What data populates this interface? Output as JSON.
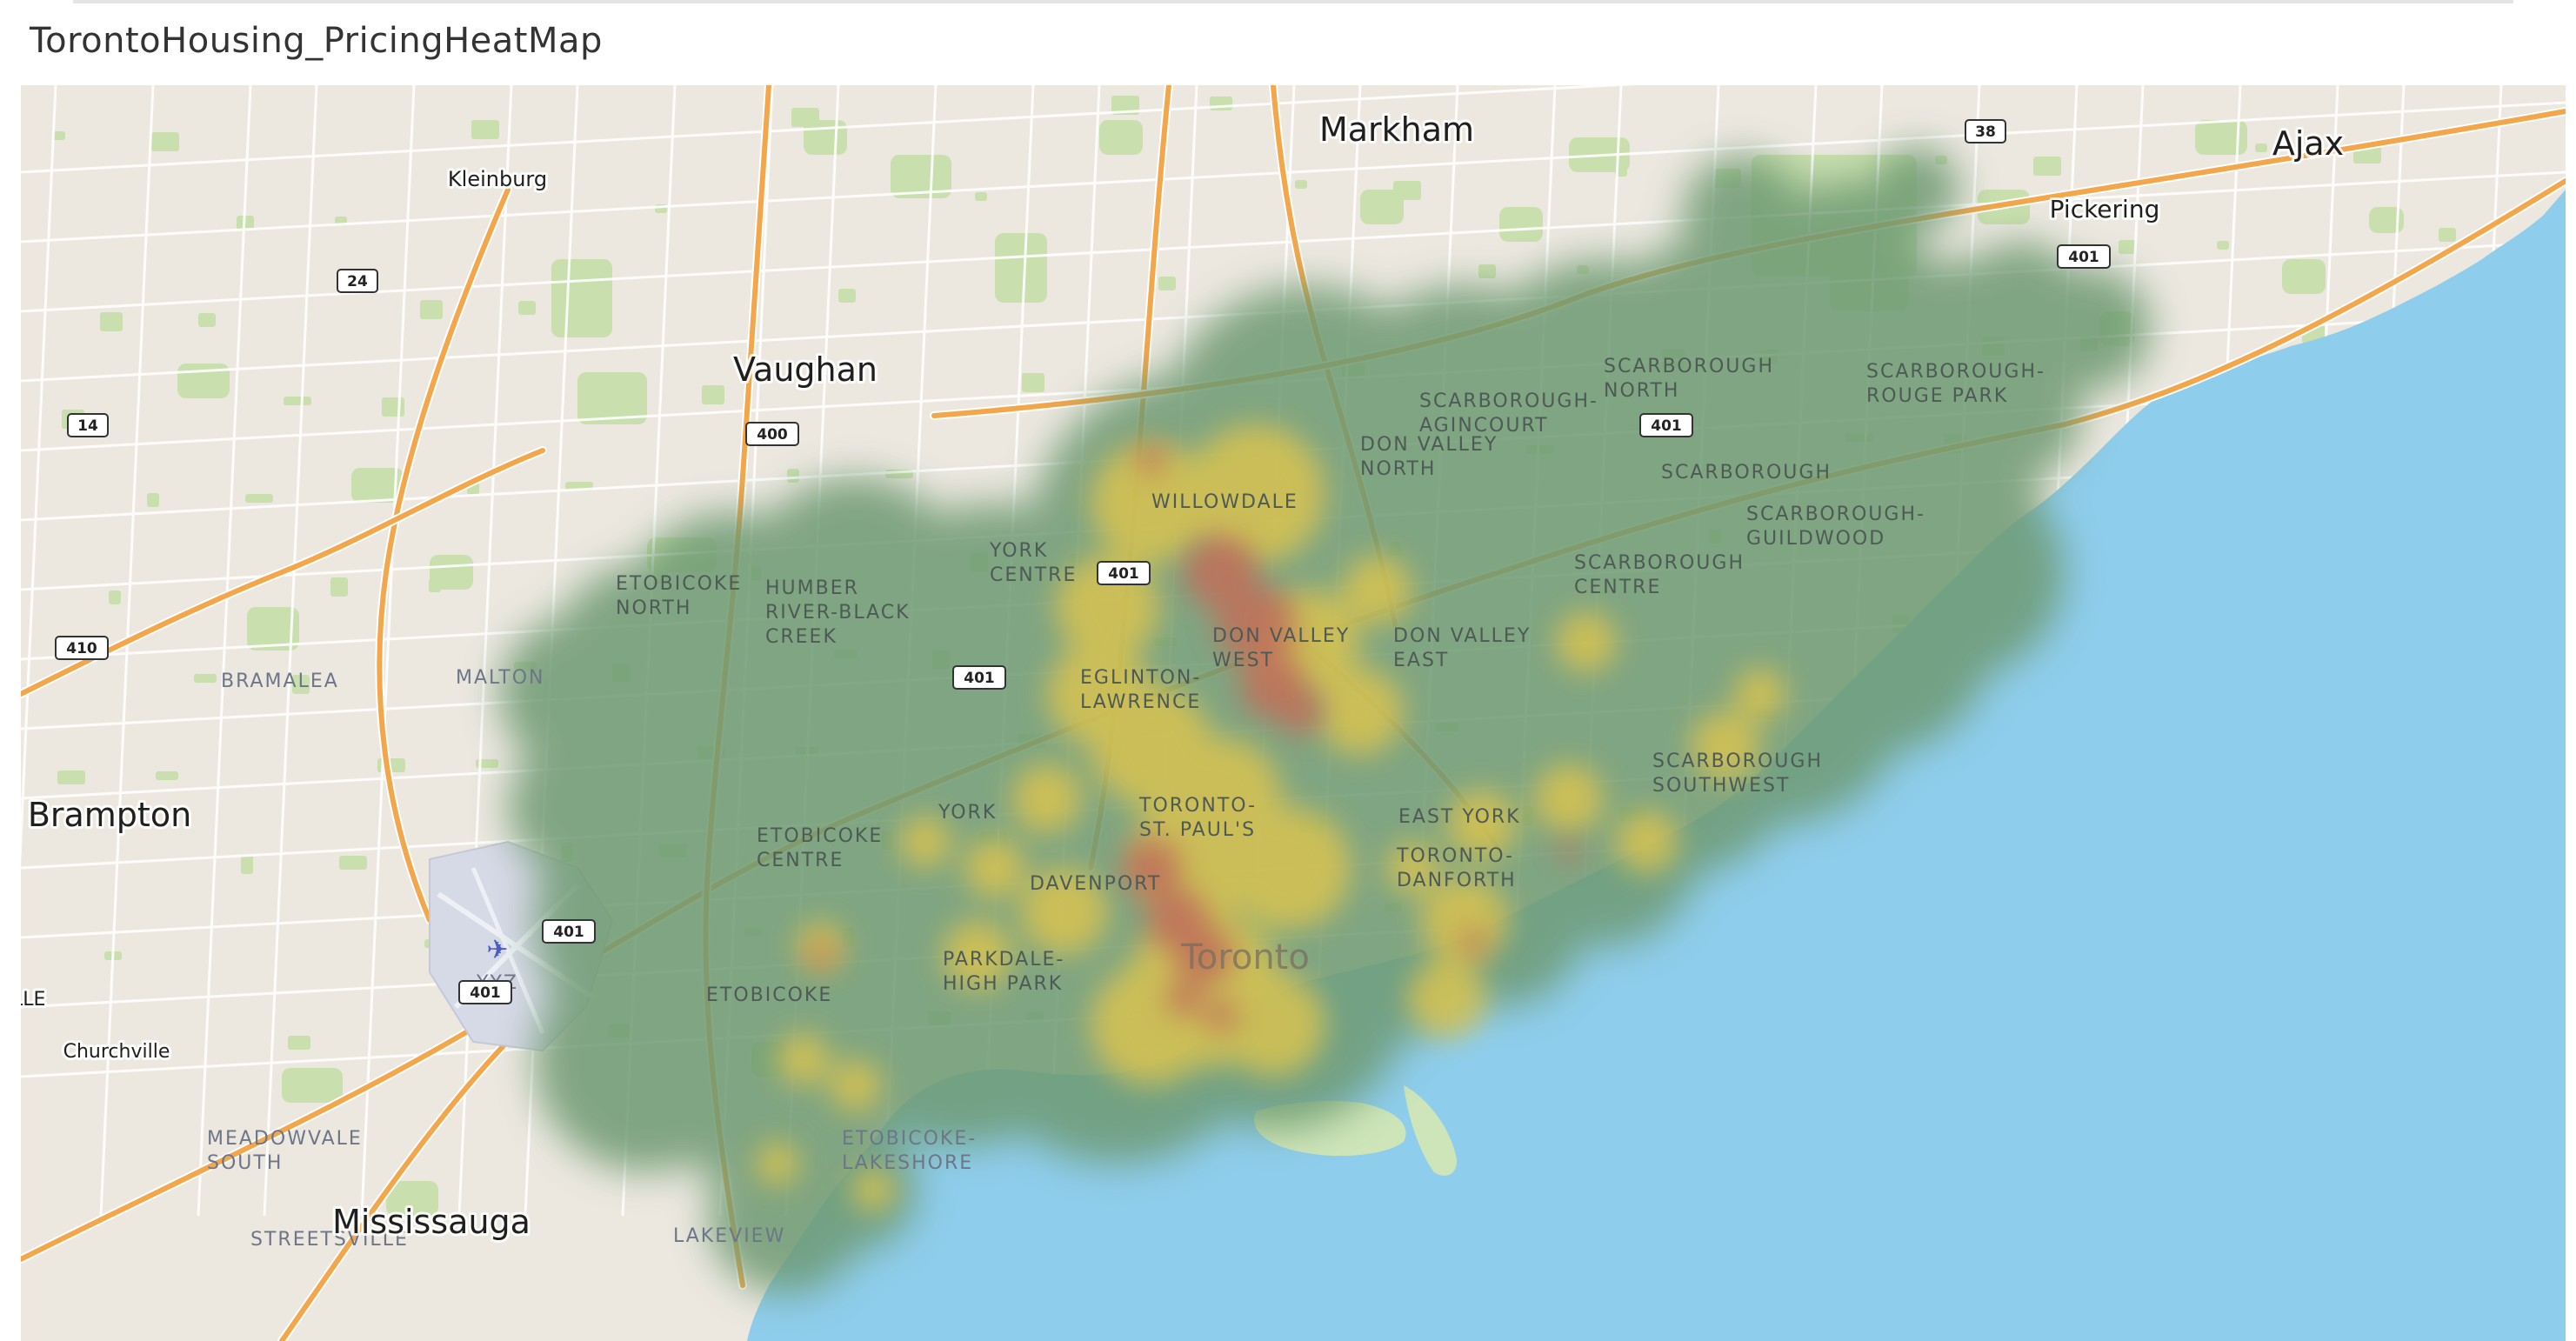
{
  "dashboard": {
    "title": "TorontoHousing_PricingHeatMap"
  },
  "map": {
    "colors": {
      "land": "#ece8e0",
      "water": "#8ecdec",
      "park": "#c9dfae",
      "highway": "#f3a64a",
      "road": "#ffffff",
      "heat_low": "#6e9a72",
      "heat_mid": "#dcc450",
      "heat_high": "#c0705a"
    },
    "cities": [
      {
        "key": "markham",
        "label": "Markham"
      },
      {
        "key": "ajax",
        "label": "Ajax"
      },
      {
        "key": "vaughan",
        "label": "Vaughan"
      },
      {
        "key": "brampton",
        "label": "Brampton"
      },
      {
        "key": "mississauga",
        "label": "Mississauga"
      },
      {
        "key": "pickering",
        "label": "Pickering"
      },
      {
        "key": "kleinburg",
        "label": "Kleinburg"
      },
      {
        "key": "churchville",
        "label": "Churchville"
      },
      {
        "key": "ille",
        "label": "ILLE"
      }
    ],
    "toronto_label": "Toronto",
    "airport_code": "YYZ",
    "neighbourhoods": [
      {
        "key": "bramalea",
        "lines": [
          "BRAMALEA"
        ]
      },
      {
        "key": "malton",
        "lines": [
          "MALTON"
        ]
      },
      {
        "key": "meadowvale",
        "lines": [
          "MEADOWVALE",
          "SOUTH"
        ]
      },
      {
        "key": "streetsville",
        "lines": [
          "STREETSVILLE"
        ]
      },
      {
        "key": "lakeview",
        "lines": [
          "LAKEVIEW"
        ]
      },
      {
        "key": "etobicoke_north",
        "lines": [
          "ETOBICOKE",
          "NORTH"
        ]
      },
      {
        "key": "humber",
        "lines": [
          "HUMBER",
          "RIVER-BLACK",
          "CREEK"
        ]
      },
      {
        "key": "york_centre",
        "lines": [
          "YORK",
          "CENTRE"
        ]
      },
      {
        "key": "willowdale",
        "lines": [
          "WILLOWDALE"
        ]
      },
      {
        "key": "don_valley_north",
        "lines": [
          "DON VALLEY",
          "NORTH"
        ]
      },
      {
        "key": "don_valley_west",
        "lines": [
          "DON VALLEY",
          "WEST"
        ]
      },
      {
        "key": "don_valley_east",
        "lines": [
          "DON VALLEY",
          "EAST"
        ]
      },
      {
        "key": "eglinton",
        "lines": [
          "EGLINTON-",
          "LAWRENCE"
        ]
      },
      {
        "key": "york",
        "lines": [
          "YORK"
        ]
      },
      {
        "key": "toronto_st_pauls",
        "lines": [
          "TORONTO-",
          "ST. PAUL'S"
        ]
      },
      {
        "key": "davenport",
        "lines": [
          "DAVENPORT"
        ]
      },
      {
        "key": "etobicoke_centre",
        "lines": [
          "ETOBICOKE",
          "CENTRE"
        ]
      },
      {
        "key": "etobicoke",
        "lines": [
          "ETOBICOKE"
        ]
      },
      {
        "key": "parkdale",
        "lines": [
          "PARKDALE-",
          "HIGH PARK"
        ]
      },
      {
        "key": "etobicoke_lakeshore",
        "lines": [
          "ETOBICOKE-",
          "LAKESHORE"
        ]
      },
      {
        "key": "east_york",
        "lines": [
          "EAST YORK"
        ]
      },
      {
        "key": "toronto_danforth",
        "lines": [
          "TORONTO-",
          "DANFORTH"
        ]
      },
      {
        "key": "scarborough_north",
        "lines": [
          "SCARBOROUGH",
          "NORTH"
        ]
      },
      {
        "key": "scarborough_agincourt",
        "lines": [
          "SCARBOROUGH-",
          "AGINCOURT"
        ]
      },
      {
        "key": "scarborough_rouge",
        "lines": [
          "SCARBOROUGH-",
          "ROUGE PARK"
        ]
      },
      {
        "key": "scarborough",
        "lines": [
          "SCARBOROUGH"
        ]
      },
      {
        "key": "scarborough_guildwood",
        "lines": [
          "SCARBOROUGH-",
          "GUILDWOOD"
        ]
      },
      {
        "key": "scarborough_centre",
        "lines": [
          "SCARBOROUGH",
          "CENTRE"
        ]
      },
      {
        "key": "scarborough_southwest",
        "lines": [
          "SCARBOROUGH",
          "SOUTHWEST"
        ]
      }
    ],
    "highway_shields": [
      {
        "key": "h38",
        "label": "38"
      },
      {
        "key": "h24",
        "label": "24"
      },
      {
        "key": "h14",
        "label": "14"
      },
      {
        "key": "h400",
        "label": "400"
      },
      {
        "key": "h401a",
        "label": "401"
      },
      {
        "key": "h401b",
        "label": "401"
      },
      {
        "key": "h401c",
        "label": "401"
      },
      {
        "key": "h401d",
        "label": "401"
      },
      {
        "key": "h401e",
        "label": "401"
      },
      {
        "key": "h401f",
        "label": "401"
      },
      {
        "key": "h410",
        "label": "410"
      }
    ]
  }
}
